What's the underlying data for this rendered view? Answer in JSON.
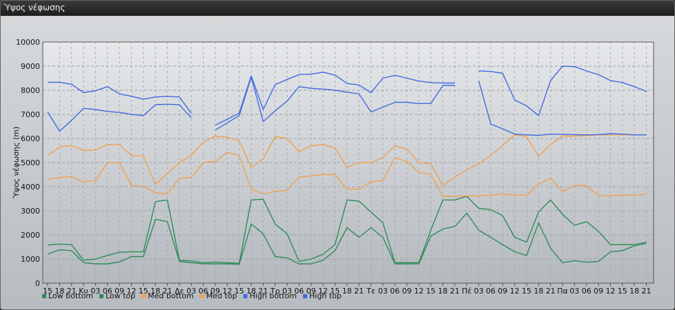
{
  "window": {
    "title": "Ύψος νέφωσης"
  },
  "colors": {
    "low": "#2e8b57",
    "med": "#f0a050",
    "high": "#4169e1"
  },
  "chart_data": {
    "type": "line",
    "title": "",
    "ylabel": "Ύψος νέφωσης (m)",
    "ylim": [
      0,
      10000
    ],
    "yticks": [
      0,
      1000,
      2000,
      3000,
      4000,
      5000,
      6000,
      7000,
      8000,
      9000,
      10000
    ],
    "grid": true,
    "legend_position": "bottom-left",
    "x": [
      "15",
      "18",
      "21",
      "Κυ",
      "03",
      "06",
      "09",
      "12",
      "15",
      "18",
      "21",
      "Δε",
      "03",
      "06",
      "09",
      "12",
      "15",
      "18",
      "21",
      "Τρ",
      "03",
      "06",
      "09",
      "12",
      "15",
      "18",
      "21",
      "Τε",
      "03",
      "06",
      "09",
      "12",
      "15",
      "18",
      "21",
      "Πέ",
      "03",
      "06",
      "09",
      "12",
      "15",
      "18",
      "21",
      "Πα",
      "03",
      "06",
      "09",
      "12",
      "15",
      "18",
      "21"
    ],
    "series": [
      {
        "name": "Low bottom",
        "color": "#2e8b57",
        "values": [
          1200,
          1380,
          1350,
          850,
          800,
          800,
          880,
          1100,
          1100,
          2650,
          2550,
          900,
          850,
          800,
          800,
          800,
          780,
          2450,
          2050,
          1100,
          1050,
          800,
          800,
          950,
          1350,
          2300,
          1900,
          2300,
          1900,
          800,
          800,
          800,
          1950,
          2250,
          2350,
          2900,
          2200,
          1900,
          1600,
          1300,
          1150,
          2500,
          1450,
          850,
          930,
          870,
          900,
          1300,
          1350,
          1550,
          1650
        ]
      },
      {
        "name": "Low top",
        "color": "#2e8b57",
        "values": [
          1580,
          1620,
          1600,
          950,
          1000,
          1150,
          1280,
          1300,
          1300,
          3380,
          3450,
          950,
          920,
          850,
          870,
          850,
          820,
          3450,
          3480,
          2450,
          2050,
          900,
          1000,
          1200,
          1600,
          3450,
          3400,
          2950,
          2500,
          850,
          850,
          850,
          2200,
          3450,
          3450,
          3600,
          3100,
          3050,
          2800,
          1900,
          1700,
          2950,
          3450,
          2850,
          2400,
          2550,
          2150,
          1600,
          1600,
          1600,
          1700
        ]
      },
      {
        "name": "Med bottom",
        "color": "#f0a050",
        "values": [
          4300,
          4380,
          4420,
          4200,
          4250,
          5000,
          5000,
          4050,
          4020,
          3750,
          3700,
          4350,
          4380,
          5000,
          5050,
          5420,
          5280,
          3900,
          3700,
          3800,
          3850,
          4400,
          4450,
          4500,
          4500,
          3900,
          3900,
          4200,
          4250,
          5200,
          5050,
          4600,
          4500,
          3600,
          3600,
          3620,
          3620,
          3650,
          3700,
          3650,
          3650,
          4100,
          4350,
          3800,
          4050,
          4050,
          3620,
          3630,
          3650,
          3650,
          3680
        ]
      },
      {
        "name": "Med top",
        "color": "#f0a050",
        "values": [
          5300,
          5650,
          5700,
          5500,
          5520,
          5750,
          5750,
          5280,
          5280,
          4100,
          4550,
          5000,
          5300,
          5850,
          6100,
          6050,
          5900,
          4800,
          5150,
          6080,
          6000,
          5450,
          5700,
          5750,
          5600,
          4800,
          5000,
          5000,
          5200,
          5700,
          5550,
          5000,
          4950,
          4050,
          4400,
          4700,
          4950,
          5300,
          5700,
          6150,
          6080,
          5250,
          5750,
          6100,
          6100,
          6120,
          6150,
          6150,
          6150,
          6150,
          6150
        ]
      },
      {
        "name": "High bottom",
        "color": "#4169e1",
        "values": [
          7100,
          6300,
          6750,
          7250,
          7200,
          7120,
          7080,
          7000,
          6950,
          7400,
          7420,
          7400,
          6850,
          null,
          6350,
          6650,
          6950,
          8550,
          6700,
          7150,
          7550,
          8150,
          8080,
          8050,
          8000,
          7920,
          7850,
          7100,
          7300,
          7500,
          7500,
          7450,
          7450,
          8200,
          8200,
          null,
          8400,
          6600,
          6400,
          6180,
          6150,
          6130,
          6180,
          6170,
          6160,
          6150,
          6160,
          6200,
          6180,
          6150,
          6150
        ]
      },
      {
        "name": "High top",
        "color": "#4169e1",
        "values": [
          8330,
          8330,
          8250,
          7900,
          7980,
          8150,
          7850,
          7750,
          7630,
          7720,
          7750,
          7720,
          7050,
          null,
          6550,
          6800,
          7050,
          8600,
          7200,
          8230,
          8450,
          8650,
          8670,
          8750,
          8630,
          8280,
          8220,
          7900,
          8500,
          8620,
          8500,
          8380,
          8320,
          8300,
          8300,
          null,
          8800,
          8780,
          8700,
          7600,
          7350,
          6950,
          8400,
          9000,
          8980,
          8800,
          8650,
          8400,
          8320,
          8150,
          7950
        ]
      }
    ]
  }
}
